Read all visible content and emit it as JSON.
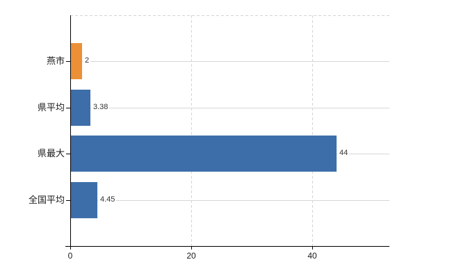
{
  "colors": {
    "highlight_bar": "#EC9038",
    "default_bar": "#3D6EA9",
    "grid": "#D6D6D6",
    "axis": "#000000",
    "text": "#1A1A1A"
  },
  "chart_data": {
    "type": "bar",
    "orientation": "horizontal",
    "title": "",
    "xlabel": "",
    "ylabel": "",
    "categories": [
      "燕市",
      "県平均",
      "県最大",
      "全国平均"
    ],
    "values": [
      2,
      3.38,
      44,
      4.45
    ],
    "value_labels": [
      "2",
      "3.38",
      "44",
      "4.45"
    ],
    "bar_colors": [
      "#EC9038",
      "#3D6EA9",
      "#3D6EA9",
      "#3D6EA9"
    ],
    "xlim": [
      0,
      52.8
    ],
    "x_ticks": [
      0,
      20,
      40
    ],
    "x_tick_labels": [
      "0",
      "20",
      "40"
    ],
    "grid": "vertical-dashed-and-horizontal-row-lines",
    "legend": "none"
  }
}
